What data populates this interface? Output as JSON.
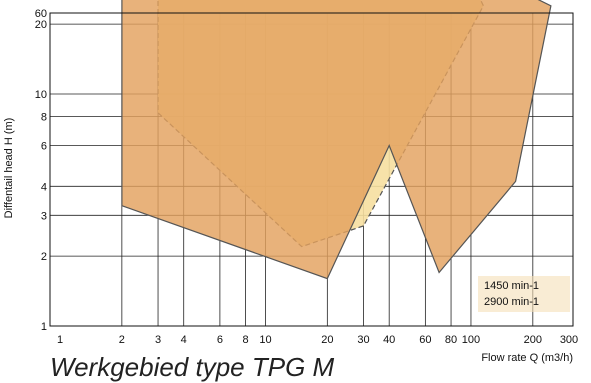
{
  "chart_data": {
    "type": "area",
    "xlabel": "Flow rate Q (m3/h)",
    "ylabel": "Diffentail head H (m)",
    "x_ticks": [
      "1",
      "2",
      "3",
      "4",
      "6",
      "8",
      "10",
      "20",
      "30",
      "40",
      "60",
      "80",
      "100",
      "200",
      "300"
    ],
    "y_ticks": [
      "60",
      "40",
      "30",
      "20",
      "10",
      "8",
      "6",
      "4",
      "3",
      "2",
      "1"
    ],
    "legend": [
      "1450 min-1",
      "2900 min-1"
    ],
    "grid": true,
    "colors": {
      "yellow_fill": "#f6dfa0",
      "orange_fill": "#e3a15e",
      "outline": "#555555",
      "grid": "#222222"
    },
    "series": [
      {
        "values": [
          {
            "x": 3,
            "y": 38
          },
          {
            "x": 13,
            "y": 58
          },
          {
            "x": 83,
            "y": 44
          },
          {
            "x": 115,
            "y": 24
          },
          {
            "x": 30,
            "y": 2.7
          },
          {
            "x": 15,
            "y": 2.2
          },
          {
            "x": 3,
            "y": 8.3
          }
        ]
      },
      {
        "values": [
          {
            "x": 2,
            "y": 27
          },
          {
            "x": 15,
            "y": 42
          },
          {
            "x": 85,
            "y": 38
          },
          {
            "x": 245,
            "y": 24
          },
          {
            "x": 165,
            "y": 4.2
          },
          {
            "x": 70,
            "y": 1.7
          },
          {
            "x": 40,
            "y": 6
          },
          {
            "x": 20,
            "y": 1.6
          },
          {
            "x": 2,
            "y": 3.3
          }
        ]
      }
    ]
  },
  "caption": "Werkgebied type TPG M"
}
